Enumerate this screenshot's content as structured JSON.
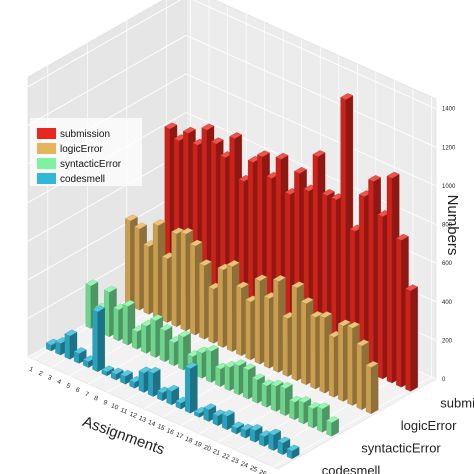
{
  "chart_data": {
    "type": "bar",
    "subtype": "3d-bar",
    "title": "",
    "xlabel": "Assignments",
    "zlabel": "Numbers",
    "zlim": [
      0,
      1450
    ],
    "zticks": [
      "0",
      "200",
      "400",
      "600",
      "800",
      "1000",
      "1200",
      "1400"
    ],
    "categories": [
      "1",
      "2",
      "3",
      "4",
      "5",
      "6",
      "7",
      "8",
      "9",
      "10",
      "11",
      "12",
      "13",
      "14",
      "15",
      "16",
      "17",
      "18",
      "19",
      "20",
      "21",
      "22",
      "23",
      "24",
      "25",
      "26",
      "27"
    ],
    "depth_categories": [
      "codesmell",
      "syntacticError",
      "logicError",
      "submission"
    ],
    "legend_position": "upper-left",
    "grid": true,
    "series": [
      {
        "name": "submission",
        "color": "#e8271e",
        "values": [
          800,
          760,
          820,
          780,
          880,
          830,
          780,
          900,
          700,
          820,
          870,
          780,
          900,
          740,
          870,
          800,
          1000,
          820,
          820,
          1360,
          700,
          900,
          1000,
          840,
          1060,
          760,
          520
        ]
      },
      {
        "name": "logicError",
        "color": "#e6b45a",
        "values": [
          440,
          420,
          350,
          480,
          330,
          480,
          500,
          460,
          380,
          280,
          400,
          440,
          350,
          300,
          430,
          360,
          470,
          300,
          480,
          420,
          370,
          390,
          310,
          390,
          400,
          330,
          240
        ]
      },
      {
        "name": "syntacticError",
        "color": "#7ef2a0",
        "values": [
          220,
          120,
          230,
          160,
          200,
          90,
          140,
          190,
          160,
          120,
          170,
          90,
          130,
          160,
          90,
          120,
          150,
          150,
          120,
          110,
          130,
          140,
          90,
          110,
          100,
          120,
          70
        ]
      },
      {
        "name": "codesmell",
        "color": "#2fb8d8",
        "values": [
          30,
          60,
          120,
          50,
          30,
          310,
          20,
          30,
          40,
          30,
          100,
          120,
          40,
          70,
          30,
          230,
          20,
          60,
          50,
          70,
          30,
          40,
          60,
          50,
          80,
          60,
          40
        ]
      }
    ]
  }
}
